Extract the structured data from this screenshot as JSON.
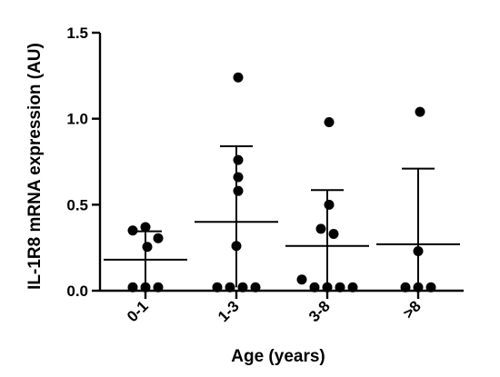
{
  "chart_data": {
    "type": "scatter",
    "subtype": "column-scatter with mean and SD",
    "title": "",
    "xlabel": "Age (years)",
    "ylabel": "IL-1R8 mRNA expression (AU)",
    "ylim": [
      0,
      1.5
    ],
    "yticks": [
      "0.0",
      "0.5",
      "1.0",
      "1.5"
    ],
    "categories": [
      "0-1",
      "1-3",
      "3-8",
      ">8"
    ],
    "groups": [
      {
        "category": "0-1",
        "mean": 0.18,
        "sd_upper": 0.345,
        "sd_lower": 0.02,
        "points": [
          0.35,
          0.37,
          0.305,
          0.255,
          0.02,
          0.02,
          0.02
        ]
      },
      {
        "category": "1-3",
        "mean": 0.4,
        "sd_upper": 0.84,
        "sd_lower": 0.02,
        "points": [
          1.24,
          0.76,
          0.66,
          0.58,
          0.26,
          0.02,
          0.02,
          0.02,
          0.02
        ]
      },
      {
        "category": "3-8",
        "mean": 0.26,
        "sd_upper": 0.585,
        "sd_lower": 0.02,
        "points": [
          0.98,
          0.5,
          0.36,
          0.33,
          0.065,
          0.02,
          0.02,
          0.02,
          0.02
        ]
      },
      {
        "category": ">8",
        "mean": 0.27,
        "sd_upper": 0.71,
        "sd_lower": 0.02,
        "points": [
          1.04,
          0.23,
          0.02,
          0.02,
          0.02
        ]
      }
    ],
    "grid": false,
    "legend": "none"
  }
}
